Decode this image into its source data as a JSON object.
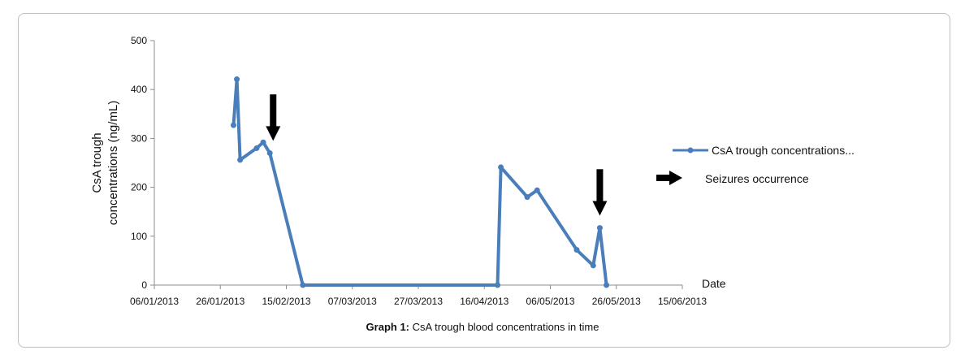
{
  "caption": {
    "label": "Graph 1:",
    "text": "CsA trough blood concentrations in time"
  },
  "chart_data": {
    "type": "line",
    "title": "",
    "xlabel": "Date",
    "ylabel_line1": "CsA trough",
    "ylabel_line2": "concentrations (ng/mL)",
    "ylim": [
      0,
      500
    ],
    "yticks": [
      0,
      100,
      200,
      300,
      400,
      500
    ],
    "xlim": [
      "2013-01-06",
      "2013-06-15"
    ],
    "xticks": [
      "06/01/2013",
      "26/01/2013",
      "15/02/2013",
      "07/03/2013",
      "27/03/2013",
      "16/04/2013",
      "06/05/2013",
      "26/05/2013",
      "15/06/2013"
    ],
    "grid": false,
    "legend_position": "right",
    "series": [
      {
        "name": "CsA trough concentrations...",
        "color": "#4a7ebb",
        "points": [
          {
            "x": "2013-01-30",
            "y": 327
          },
          {
            "x": "2013-01-31",
            "y": 421
          },
          {
            "x": "2013-02-01",
            "y": 256
          },
          {
            "x": "2013-02-06",
            "y": 280
          },
          {
            "x": "2013-02-08",
            "y": 292
          },
          {
            "x": "2013-02-10",
            "y": 270
          },
          {
            "x": "2013-02-20",
            "y": 0
          },
          {
            "x": "2013-04-20",
            "y": 0
          },
          {
            "x": "2013-04-21",
            "y": 241
          },
          {
            "x": "2013-04-29",
            "y": 180
          },
          {
            "x": "2013-05-02",
            "y": 194
          },
          {
            "x": "2013-05-14",
            "y": 72
          },
          {
            "x": "2013-05-19",
            "y": 40
          },
          {
            "x": "2013-05-21",
            "y": 117
          },
          {
            "x": "2013-05-23",
            "y": 0
          }
        ]
      }
    ],
    "annotations": [
      {
        "type": "arrow-down",
        "x": "2013-02-11",
        "y_top": 390,
        "y_bottom": 295
      },
      {
        "type": "arrow-down",
        "x": "2013-05-21",
        "y_top": 237,
        "y_bottom": 142
      }
    ],
    "legend_extra": {
      "label": "Seizures occurrence",
      "icon": "arrow-right-icon"
    }
  }
}
